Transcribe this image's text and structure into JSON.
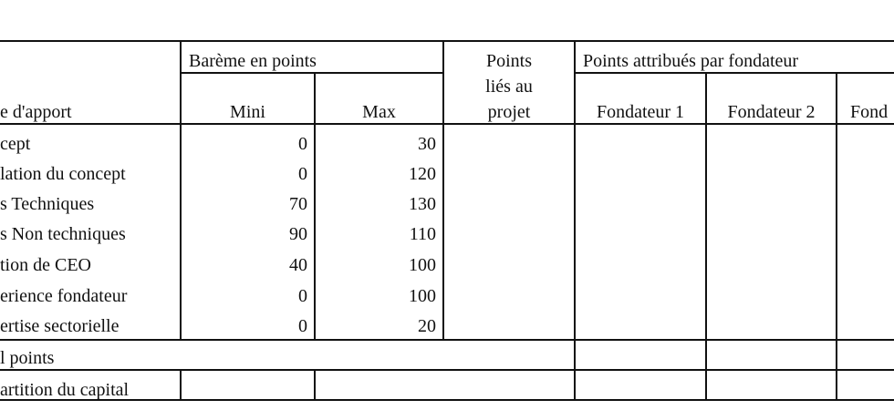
{
  "header": {
    "type_label": "e d'apport",
    "bareme_label": "Barème en points",
    "mini_label": "Mini",
    "max_label": "Max",
    "projet_label": [
      "Points",
      "liés au",
      "projet"
    ],
    "attribues_label": "Points attribués par fondateur",
    "fondateurs": [
      "Fondateur 1",
      "Fondateur 2",
      "Fond"
    ]
  },
  "rows": [
    {
      "label": "cept",
      "mini": "0",
      "max": "30"
    },
    {
      "label": "lation du concept",
      "mini": "0",
      "max": "120"
    },
    {
      "label": "s Techniques",
      "mini": "70",
      "max": "130"
    },
    {
      "label": "s Non techniques",
      "mini": "90",
      "max": "110"
    },
    {
      "label": "tion de CEO",
      "mini": "40",
      "max": "100"
    },
    {
      "label": "erience fondateur",
      "mini": "0",
      "max": "100"
    },
    {
      "label": "ertise sectorielle",
      "mini": "0",
      "max": "20"
    }
  ],
  "total_label": "l points",
  "capital_label": "artition du capital"
}
